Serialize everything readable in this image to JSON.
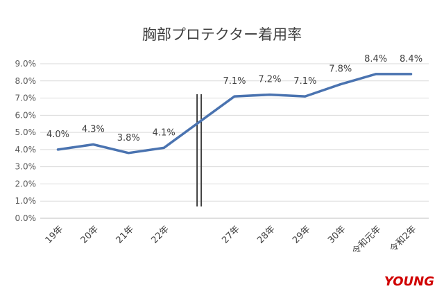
{
  "chart_data": {
    "type": "line",
    "title": "胸部プロテクター着用率",
    "categories": [
      "19年",
      "20年",
      "21年",
      "22年",
      "27年",
      "28年",
      "29年",
      "30年",
      "令和元年",
      "令和2年"
    ],
    "series": [
      {
        "values": [
          4.0,
          4.3,
          3.8,
          4.1,
          7.1,
          7.2,
          7.1,
          7.8,
          8.4,
          8.4
        ],
        "data_labels": [
          "4.0%",
          "4.3%",
          "3.8%",
          "4.1%",
          "7.1%",
          "7.2%",
          "7.1%",
          "7.8%",
          "8.4%",
          "8.4%"
        ],
        "color": "#4a73b0"
      }
    ],
    "ylim": [
      0,
      9
    ],
    "y_ticks": [
      "0.0%",
      "1.0%",
      "2.0%",
      "3.0%",
      "4.0%",
      "5.0%",
      "6.0%",
      "7.0%",
      "8.0%",
      "9.0%"
    ],
    "grid": true,
    "axis_break": "double vertical line between 22年 and 27年"
  },
  "watermark": {
    "text": "YOUNG",
    "color": "#d00000"
  }
}
